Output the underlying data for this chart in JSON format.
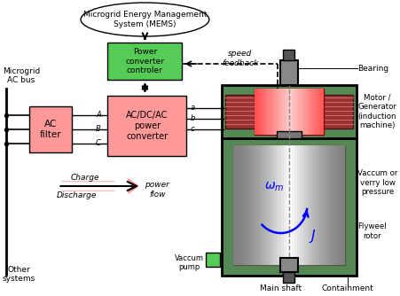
{
  "bg_color": "#ffffff",
  "mems_text": "Microgrid Energy Management\nSystem (MEMS)",
  "pcc_text": "Power\nconverter\ncontroler",
  "ac_filter_text": "AC\nfilter",
  "power_converter_text": "AC/DC/AC\npower\nconverter",
  "microgrid_text": "Microgrid\nAC bus",
  "other_systems_text": "Other\nsystems",
  "charge_text": "Charge",
  "discharge_text": "Discharge",
  "power_flow_text": "power\nflow",
  "speed_feedback_text": "speed\nfeedback",
  "bearing_text": "Bearing",
  "motor_generator_text": "Motor /\nGenerator\n(induction\nmachine)",
  "vaccum_pressure_text": "Vaccum or\nverry low\npressure",
  "flywheelrotor_text": "Flyweel\nrotor",
  "vaccum_pump_text": "Vaccum\npump",
  "main_shaft_text": "Main shaft",
  "containment_text": "Containment",
  "green_color": "#55cc55",
  "pink_color": "#ff9999",
  "dark_green_color": "#558855",
  "labels_A": "A",
  "labels_B": "B",
  "labels_C": "C",
  "labels_a": "a",
  "labels_b": "b",
  "labels_c": "c"
}
